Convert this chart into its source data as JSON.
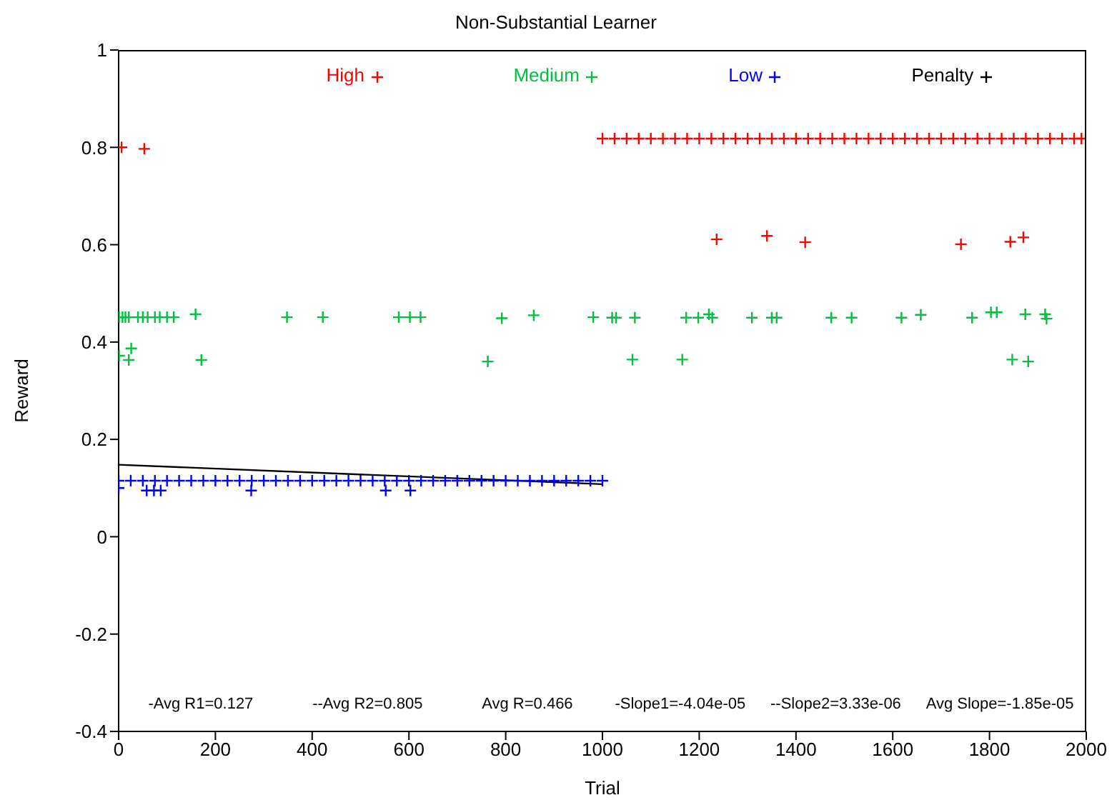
{
  "chart_data": {
    "type": "scatter",
    "title": "Non-Substantial Learner",
    "xlabel": "Trial",
    "ylabel": "Reward",
    "xlim": [
      0,
      2000
    ],
    "xticks": [
      0,
      200,
      400,
      600,
      800,
      1000,
      1200,
      1400,
      1600,
      1800,
      2000
    ],
    "ylim": [
      -0.4,
      1
    ],
    "yticks": [
      -0.4,
      -0.2,
      0,
      0.2,
      0.4,
      0.6,
      0.8,
      1
    ],
    "legend": "top",
    "marker": "cross",
    "series": [
      {
        "name": "High",
        "color": "#ff0000",
        "x": [
          6,
          53,
          1000,
          1025,
          1050,
          1075,
          1100,
          1125,
          1150,
          1175,
          1200,
          1225,
          1250,
          1275,
          1300,
          1325,
          1350,
          1375,
          1400,
          1425,
          1450,
          1475,
          1500,
          1525,
          1550,
          1575,
          1600,
          1625,
          1650,
          1675,
          1700,
          1725,
          1750,
          1775,
          1800,
          1825,
          1850,
          1875,
          1900,
          1925,
          1950,
          1975,
          1990,
          1236,
          1340,
          1419,
          1741,
          1843,
          1870
        ],
        "values": [
          0.8,
          0.797,
          0.818,
          0.818,
          0.818,
          0.818,
          0.818,
          0.818,
          0.818,
          0.818,
          0.818,
          0.818,
          0.818,
          0.818,
          0.818,
          0.818,
          0.818,
          0.818,
          0.818,
          0.818,
          0.818,
          0.818,
          0.818,
          0.818,
          0.818,
          0.818,
          0.818,
          0.818,
          0.818,
          0.818,
          0.818,
          0.818,
          0.818,
          0.818,
          0.818,
          0.818,
          0.818,
          0.818,
          0.818,
          0.818,
          0.818,
          0.818,
          0.818,
          0.611,
          0.618,
          0.605,
          0.601,
          0.606,
          0.615
        ]
      },
      {
        "name": "Medium",
        "color": "#00c040",
        "x": [
          1,
          8,
          14,
          21,
          40,
          50,
          60,
          75,
          85,
          100,
          114,
          159,
          348,
          422,
          579,
          602,
          624,
          792,
          858,
          981,
          1020,
          1028,
          1067,
          1173,
          1198,
          1220,
          1227,
          1309,
          1350,
          1360,
          1473,
          1515,
          1618,
          1658,
          1764,
          1803,
          1815,
          1874,
          1915,
          1918,
          1,
          26,
          21,
          171,
          763,
          1062,
          1165,
          1847,
          1880
        ],
        "values": [
          0.451,
          0.451,
          0.451,
          0.451,
          0.451,
          0.451,
          0.451,
          0.451,
          0.451,
          0.451,
          0.451,
          0.457,
          0.451,
          0.451,
          0.451,
          0.451,
          0.451,
          0.449,
          0.455,
          0.451,
          0.45,
          0.45,
          0.45,
          0.45,
          0.45,
          0.457,
          0.45,
          0.45,
          0.45,
          0.45,
          0.45,
          0.45,
          0.45,
          0.456,
          0.45,
          0.461,
          0.461,
          0.457,
          0.457,
          0.448,
          0.372,
          0.387,
          0.363,
          0.363,
          0.36,
          0.364,
          0.364,
          0.364,
          0.36
        ]
      },
      {
        "name": "Low",
        "color": "#0000ff",
        "x": [
          0,
          25,
          50,
          75,
          100,
          125,
          150,
          175,
          200,
          225,
          250,
          275,
          300,
          325,
          350,
          375,
          400,
          425,
          450,
          475,
          500,
          525,
          550,
          575,
          600,
          625,
          650,
          675,
          700,
          725,
          750,
          775,
          800,
          825,
          850,
          875,
          900,
          925,
          950,
          975,
          1000,
          0,
          58,
          73,
          87,
          274,
          552,
          603
        ],
        "values": [
          0.115,
          0.115,
          0.115,
          0.115,
          0.115,
          0.115,
          0.115,
          0.115,
          0.115,
          0.115,
          0.115,
          0.115,
          0.115,
          0.115,
          0.115,
          0.115,
          0.115,
          0.115,
          0.115,
          0.115,
          0.115,
          0.115,
          0.115,
          0.115,
          0.115,
          0.115,
          0.115,
          0.115,
          0.115,
          0.115,
          0.115,
          0.115,
          0.115,
          0.115,
          0.115,
          0.115,
          0.115,
          0.115,
          0.115,
          0.115,
          0.115,
          0.1,
          0.095,
          0.095,
          0.095,
          0.095,
          0.095,
          0.095
        ]
      },
      {
        "name": "Penalty",
        "color": "#000000"
      },
      {
        "type": "line",
        "color": "#000000",
        "marker": "none",
        "x": [
          0,
          1000
        ],
        "values": [
          0.148,
          0.108
        ]
      }
    ],
    "annotations": [
      "-Avg R1=0.127",
      "--Avg R2=0.805",
      "Avg R=0.466",
      "-Slope1=-4.04e-05",
      "--Slope2=3.33e-06",
      "Avg Slope=-1.85e-05"
    ]
  }
}
